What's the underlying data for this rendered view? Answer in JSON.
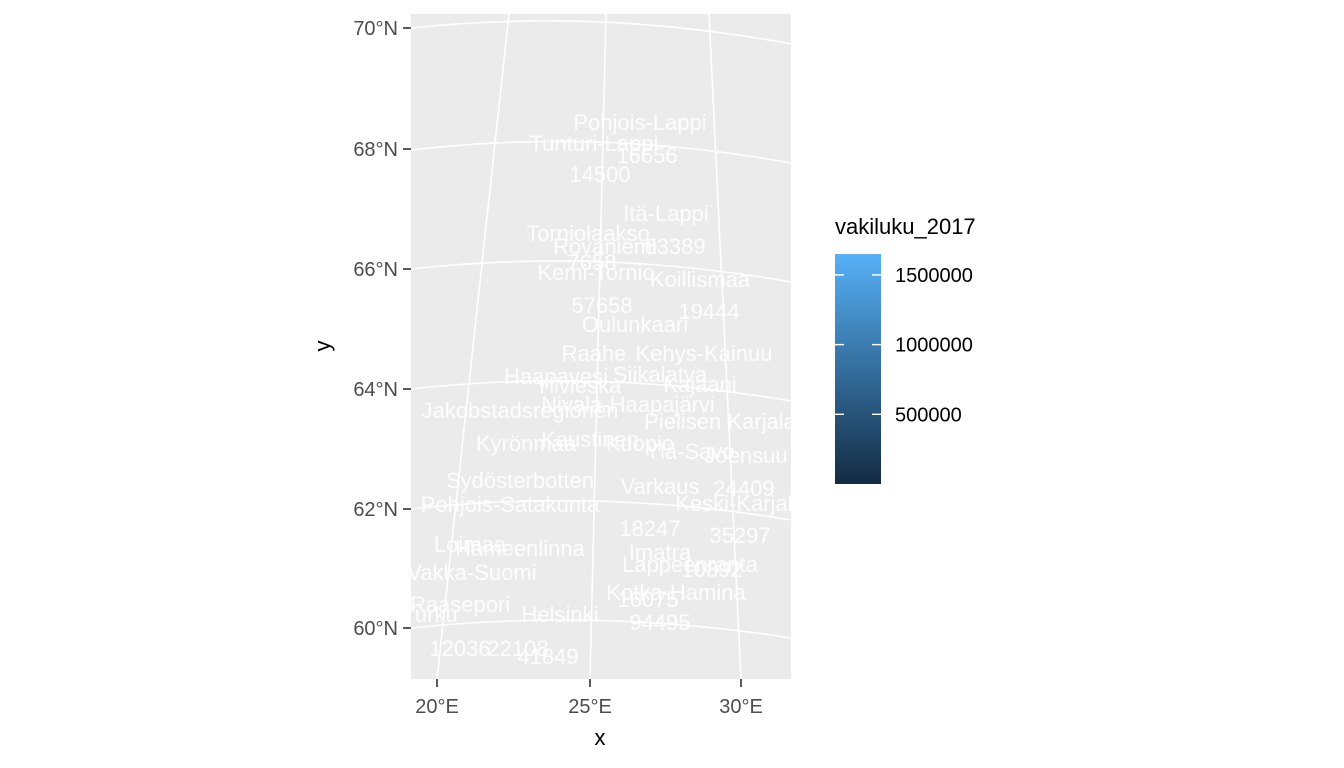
{
  "axes": {
    "x_title": "x",
    "y_title": "y",
    "x_ticks": [
      "20°E",
      "25°E",
      "30°E"
    ],
    "y_ticks": [
      "60°N",
      "62°N",
      "64°N",
      "66°N",
      "68°N",
      "70°N"
    ]
  },
  "legend": {
    "title": "vakiluku_2017",
    "breaks": [
      "500000",
      "1000000",
      "1500000"
    ],
    "break_values": [
      500000,
      1000000,
      1500000
    ],
    "range": [
      0,
      1650000
    ],
    "low_color": "#132B43",
    "high_color": "#56B1F7"
  },
  "panel": {
    "background": "#EBEBEB",
    "grid_color": "#FFFFFF"
  },
  "labels": [
    "Pohjois-Lappi",
    "Tunturi-Lappi",
    "16656",
    "14500",
    "Itä-Lappi",
    "Torniolaakso",
    "Rovaniemi",
    "63389",
    "7658",
    "Kemi-Tornio",
    "Koillismaa",
    "57658",
    "19444",
    "Oulunkaari",
    "Raahe",
    "Kehys-Kainuu",
    "Haapavesi",
    "Siikalatva",
    "Ylivieska",
    "Kajaani",
    "Jakobstadsregionen",
    "Nivala-Haapajärvi",
    "Pielisen Karjala",
    "Kyrönmaa",
    "Kaustinen",
    "Kuopio",
    "Ylä-Savo",
    "Joensuu",
    "Sydösterbotten",
    "Pohjois-Satakunta",
    "Varkaus",
    "24409",
    "Keski-Karjala",
    "Loimaa",
    "Hämeenlinna",
    "18247",
    "Vakka-Suomi",
    "Imatra",
    "10892",
    "Lappeenranta",
    "Kotka-Hamina",
    "Raasepori",
    "Turku",
    "Helsinki",
    "35297",
    "94495",
    "12036",
    "22108",
    "41849",
    "16075"
  ]
}
